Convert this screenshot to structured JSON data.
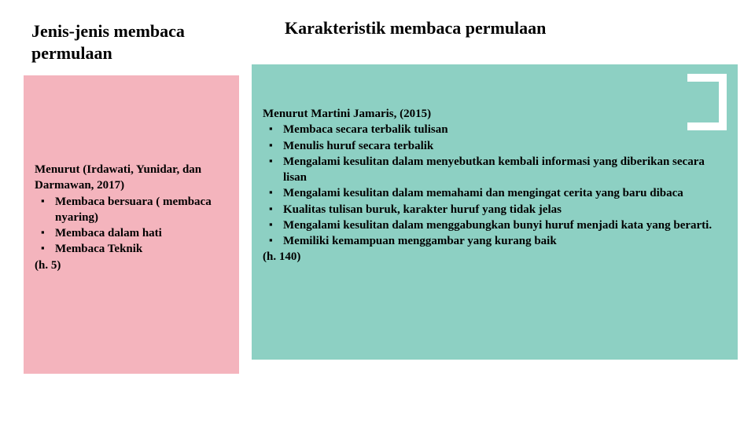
{
  "left": {
    "title": "Jenis-jenis membaca permulaan",
    "source": "Menurut (Irdawati, Yunidar, dan Darmawan, 2017)",
    "items": [
      "Membaca bersuara ( membaca nyaring)",
      "Membaca dalam hati",
      "Membaca Teknik"
    ],
    "page_ref": "(h. 5)",
    "panel_color": "#f4b4bd"
  },
  "right": {
    "title": "Karakteristik membaca permulaan",
    "source": "Menurut Martini Jamaris, (2015)",
    "items": [
      "Membaca secara terbalik tulisan",
      "Menulis huruf secara terbalik",
      "Mengalami kesulitan dalam menyebutkan kembali informasi yang diberikan secara lisan",
      "Mengalami kesulitan dalam memahami dan mengingat cerita yang baru dibaca",
      "Kualitas tulisan buruk, karakter huruf yang tidak jelas",
      "Mengalami kesulitan dalam menggabungkan bunyi huruf menjadi kata yang berarti.",
      "Memiliki kemampuan menggambar yang kurang baik"
    ],
    "page_ref": "(h. 140)",
    "panel_color": "#8dd0c3",
    "corner_color": "#ffffff"
  },
  "slide_bg": "#ffffff"
}
